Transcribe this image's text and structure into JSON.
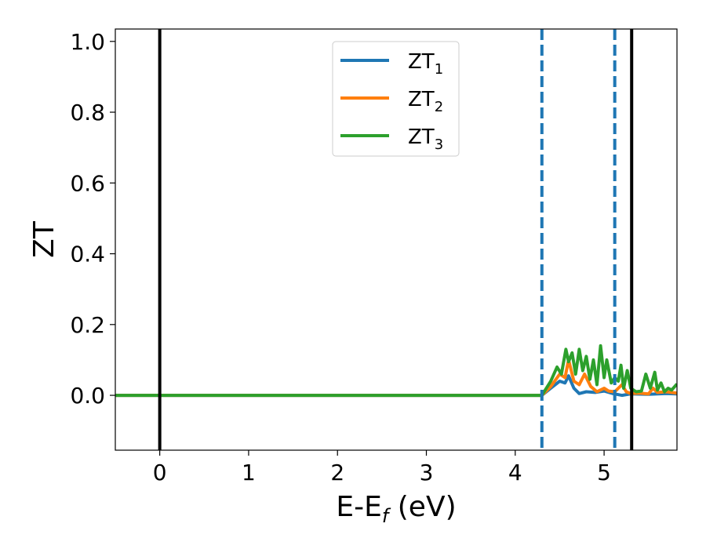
{
  "chart_data": {
    "type": "line",
    "xlabel": {
      "base": "E-E",
      "sub": "f",
      "suffix": " (eV)"
    },
    "ylabel": "ZT",
    "xlim": [
      -0.5,
      5.82
    ],
    "ylim": [
      -0.155,
      1.035
    ],
    "xticks": [
      0,
      1,
      2,
      3,
      4,
      5
    ],
    "yticks": [
      0.0,
      0.2,
      0.4,
      0.6,
      0.8,
      1.0
    ],
    "ytick_labels": [
      "0.0",
      "0.2",
      "0.4",
      "0.6",
      "0.8",
      "1.0"
    ],
    "grid": false,
    "legend_position": "top-center",
    "vlines": [
      {
        "x": 0.0,
        "style": "solid",
        "color": "#000000"
      },
      {
        "x": 4.3,
        "style": "dashed",
        "color": "#1f77b4"
      },
      {
        "x": 5.12,
        "style": "dashed",
        "color": "#1f77b4"
      },
      {
        "x": 5.31,
        "style": "solid",
        "color": "#000000"
      }
    ],
    "series": [
      {
        "name": "ZT",
        "sub": "1",
        "color": "#1f77b4",
        "x": [
          -0.5,
          4.3,
          4.4,
          4.5,
          4.56,
          4.6,
          4.66,
          4.72,
          4.8,
          4.9,
          5.0,
          5.1,
          5.2,
          5.3,
          5.5,
          5.7,
          5.82
        ],
        "y": [
          0,
          0,
          0.02,
          0.04,
          0.035,
          0.055,
          0.02,
          0.005,
          0.01,
          0.008,
          0.012,
          0.005,
          0.0,
          0.004,
          0.003,
          0.005,
          0.004
        ]
      },
      {
        "name": "ZT",
        "sub": "2",
        "color": "#ff7f0e",
        "x": [
          -0.5,
          4.3,
          4.4,
          4.5,
          4.56,
          4.6,
          4.66,
          4.72,
          4.78,
          4.85,
          4.92,
          5.0,
          5.05,
          5.12,
          5.2,
          5.25,
          5.3,
          5.4,
          5.5,
          5.55,
          5.6,
          5.7,
          5.82
        ],
        "y": [
          0,
          0,
          0.025,
          0.06,
          0.05,
          0.1,
          0.04,
          0.03,
          0.06,
          0.025,
          0.01,
          0.02,
          0.012,
          0.01,
          0.03,
          0.01,
          0.005,
          0.006,
          0.004,
          0.02,
          0.008,
          0.01,
          0.006
        ]
      },
      {
        "name": "ZT",
        "sub": "3",
        "color": "#2ca02c",
        "x": [
          -0.5,
          4.3,
          4.4,
          4.47,
          4.52,
          4.57,
          4.6,
          4.64,
          4.68,
          4.72,
          4.76,
          4.8,
          4.84,
          4.88,
          4.92,
          4.96,
          5.0,
          5.03,
          5.08,
          5.12,
          5.16,
          5.19,
          5.22,
          5.26,
          5.3,
          5.36,
          5.42,
          5.47,
          5.52,
          5.57,
          5.6,
          5.64,
          5.68,
          5.72,
          5.76,
          5.82
        ],
        "y": [
          0,
          0,
          0.04,
          0.08,
          0.06,
          0.13,
          0.095,
          0.12,
          0.06,
          0.13,
          0.07,
          0.11,
          0.045,
          0.1,
          0.03,
          0.14,
          0.05,
          0.1,
          0.035,
          0.05,
          0.04,
          0.085,
          0.02,
          0.07,
          0.02,
          0.01,
          0.012,
          0.06,
          0.02,
          0.065,
          0.015,
          0.035,
          0.01,
          0.02,
          0.015,
          0.032
        ]
      }
    ]
  }
}
